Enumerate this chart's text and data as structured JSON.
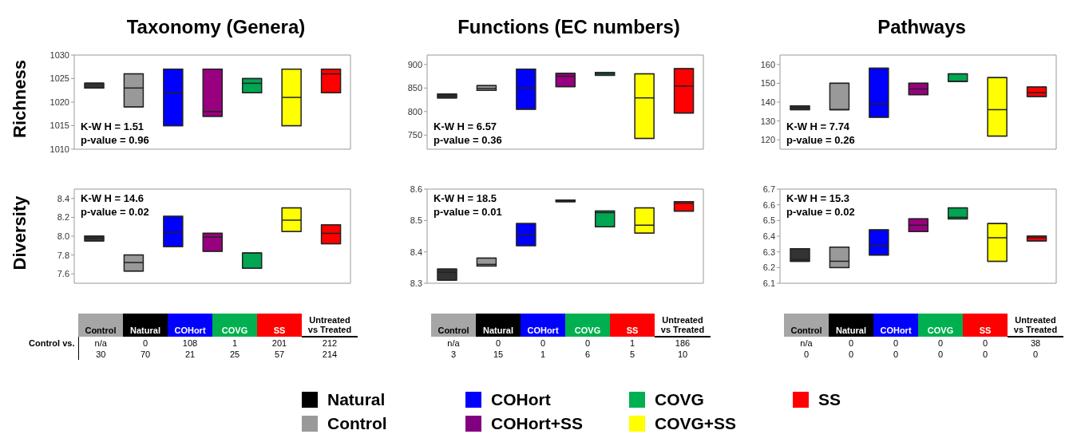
{
  "chart_data": [
    {
      "type": "box",
      "title": "Taxonomy (Genera)",
      "ylabel": "Richness",
      "categories": [
        null,
        null,
        null,
        null,
        null,
        null,
        null
      ],
      "colors": [
        "#333333",
        "#999999",
        "#0000ff",
        "#990080",
        "#00a651",
        "#ffff00",
        "#ff0000"
      ],
      "boxes": [
        {
          "low": 1023,
          "q1": 1023,
          "median": 1024,
          "q3": 1024,
          "high": 1024
        },
        {
          "low": 1019,
          "q1": 1019,
          "median": 1023,
          "q3": 1026,
          "high": 1026
        },
        {
          "low": 1015,
          "q1": 1015,
          "median": 1022,
          "q3": 1027,
          "high": 1027
        },
        {
          "low": 1017,
          "q1": 1017,
          "median": 1018,
          "q3": 1027,
          "high": 1027
        },
        {
          "low": 1022,
          "q1": 1022,
          "median": 1024,
          "q3": 1025,
          "high": 1025
        },
        {
          "low": 1015,
          "q1": 1015,
          "median": 1021,
          "q3": 1027,
          "high": 1027
        },
        {
          "low": 1022,
          "q1": 1022,
          "median": 1026,
          "q3": 1027,
          "high": 1027
        }
      ],
      "ylim": [
        1010,
        1030
      ],
      "yticks": [
        1010,
        1015,
        1020,
        1025,
        1030
      ],
      "annotations": [
        "K-W H = 1.51",
        "p-value = 0.96"
      ]
    },
    {
      "type": "box",
      "title": "Functions (EC numbers)",
      "categories": [
        null,
        null,
        null,
        null,
        null,
        null,
        null
      ],
      "colors": [
        "#333333",
        "#999999",
        "#0000ff",
        "#990080",
        "#00a651",
        "#ffff00",
        "#ff0000"
      ],
      "boxes": [
        {
          "low": 829,
          "q1": 829,
          "median": 833,
          "q3": 837,
          "high": 837
        },
        {
          "low": 845,
          "q1": 845,
          "median": 849,
          "q3": 855,
          "high": 855
        },
        {
          "low": 805,
          "q1": 805,
          "median": 850,
          "q3": 890,
          "high": 890
        },
        {
          "low": 853,
          "q1": 853,
          "median": 875,
          "q3": 881,
          "high": 881
        },
        {
          "low": 877,
          "q1": 877,
          "median": 880,
          "q3": 883,
          "high": 883
        },
        {
          "low": 743,
          "q1": 743,
          "median": 829,
          "q3": 880,
          "high": 880
        },
        {
          "low": 797,
          "q1": 797,
          "median": 854,
          "q3": 891,
          "high": 891
        }
      ],
      "ylim": [
        720,
        920
      ],
      "yticks": [
        750,
        800,
        850,
        900
      ],
      "annotations": [
        "K-W H = 6.57",
        "p-value = 0.36"
      ]
    },
    {
      "type": "box",
      "title": "Pathways",
      "categories": [
        null,
        null,
        null,
        null,
        null,
        null,
        null
      ],
      "colors": [
        "#333333",
        "#999999",
        "#0000ff",
        "#990080",
        "#00a651",
        "#ffff00",
        "#ff0000"
      ],
      "boxes": [
        {
          "low": 136,
          "q1": 136,
          "median": 137,
          "q3": 138,
          "high": 138
        },
        {
          "low": 136,
          "q1": 136,
          "median": 136,
          "q3": 150,
          "high": 150
        },
        {
          "low": 132,
          "q1": 132,
          "median": 139,
          "q3": 158,
          "high": 158
        },
        {
          "low": 144,
          "q1": 144,
          "median": 147,
          "q3": 150,
          "high": 150
        },
        {
          "low": 151,
          "q1": 151,
          "median": 151,
          "q3": 155,
          "high": 155
        },
        {
          "low": 122,
          "q1": 122,
          "median": 136,
          "q3": 153,
          "high": 153
        },
        {
          "low": 143,
          "q1": 143,
          "median": 145,
          "q3": 148,
          "high": 148
        }
      ],
      "ylim": [
        115,
        165
      ],
      "yticks": [
        120,
        130,
        140,
        150,
        160
      ],
      "annotations": [
        "K-W H = 7.74",
        "p-value = 0.26"
      ]
    },
    {
      "type": "box",
      "ylabel": "Diversity",
      "categories": [
        null,
        null,
        null,
        null,
        null,
        null,
        null
      ],
      "colors": [
        "#333333",
        "#999999",
        "#0000ff",
        "#990080",
        "#00a651",
        "#ffff00",
        "#ff0000"
      ],
      "boxes": [
        {
          "low": 7.95,
          "q1": 7.95,
          "median": 7.98,
          "q3": 8.0,
          "high": 8.0
        },
        {
          "low": 7.63,
          "q1": 7.63,
          "median": 7.72,
          "q3": 7.8,
          "high": 7.8
        },
        {
          "low": 7.89,
          "q1": 7.89,
          "median": 8.04,
          "q3": 8.21,
          "high": 8.21
        },
        {
          "low": 7.84,
          "q1": 7.84,
          "median": 7.99,
          "q3": 8.03,
          "high": 8.03
        },
        {
          "low": 7.66,
          "q1": 7.66,
          "median": 7.82,
          "q3": 7.82,
          "high": 7.82
        },
        {
          "low": 8.05,
          "q1": 8.05,
          "median": 8.17,
          "q3": 8.3,
          "high": 8.3
        },
        {
          "low": 7.92,
          "q1": 7.92,
          "median": 8.03,
          "q3": 8.12,
          "high": 8.12
        }
      ],
      "ylim": [
        7.5,
        8.5
      ],
      "yticks": [
        7.6,
        7.8,
        {
          "value": 8,
          "label": "8.0"
        },
        8.2,
        8.4
      ],
      "annotations": [
        "K-W H = 14.6",
        "p-value = 0.02"
      ]
    },
    {
      "type": "box",
      "categories": [
        null,
        null,
        null,
        null,
        null,
        null,
        null
      ],
      "colors": [
        "#333333",
        "#999999",
        "#0000ff",
        "#990080",
        "#00a651",
        "#ffff00",
        "#ff0000"
      ],
      "boxes": [
        {
          "low": 8.31,
          "q1": 8.31,
          "median": 8.335,
          "q3": 8.345,
          "high": 8.345
        },
        {
          "low": 8.355,
          "q1": 8.355,
          "median": 8.36,
          "q3": 8.38,
          "high": 8.38
        },
        {
          "low": 8.42,
          "q1": 8.42,
          "median": 8.455,
          "q3": 8.49,
          "high": 8.49
        },
        {
          "low": 8.56,
          "q1": 8.56,
          "median": 8.562,
          "q3": 8.565,
          "high": 8.565
        },
        {
          "low": 8.48,
          "q1": 8.48,
          "median": 8.525,
          "q3": 8.53,
          "high": 8.53
        },
        {
          "low": 8.46,
          "q1": 8.46,
          "median": 8.485,
          "q3": 8.54,
          "high": 8.54
        },
        {
          "low": 8.53,
          "q1": 8.53,
          "median": 8.555,
          "q3": 8.56,
          "high": 8.56
        }
      ],
      "ylim": [
        8.3,
        8.6
      ],
      "yticks": [
        8.3,
        8.4,
        8.5,
        8.6
      ],
      "annotations": [
        "K-W H = 18.5",
        "p-value = 0.01"
      ]
    },
    {
      "type": "box",
      "categories": [
        null,
        null,
        null,
        null,
        null,
        null,
        null
      ],
      "colors": [
        "#333333",
        "#999999",
        "#0000ff",
        "#990080",
        "#00a651",
        "#ffff00",
        "#ff0000"
      ],
      "boxes": [
        {
          "low": 6.24,
          "q1": 6.24,
          "median": 6.25,
          "q3": 6.32,
          "high": 6.32
        },
        {
          "low": 6.2,
          "q1": 6.2,
          "median": 6.24,
          "q3": 6.33,
          "high": 6.33
        },
        {
          "low": 6.28,
          "q1": 6.28,
          "median": 6.34,
          "q3": 6.44,
          "high": 6.44
        },
        {
          "low": 6.43,
          "q1": 6.43,
          "median": 6.47,
          "q3": 6.51,
          "high": 6.51
        },
        {
          "low": 6.51,
          "q1": 6.51,
          "median": 6.52,
          "q3": 6.58,
          "high": 6.58
        },
        {
          "low": 6.24,
          "q1": 6.24,
          "median": 6.39,
          "q3": 6.48,
          "high": 6.48
        },
        {
          "low": 6.37,
          "q1": 6.37,
          "median": 6.39,
          "q3": 6.4,
          "high": 6.4
        }
      ],
      "ylim": [
        6.1,
        6.7
      ],
      "yticks": [
        6.1,
        6.2,
        6.3,
        6.4,
        6.5,
        6.6,
        6.7
      ],
      "annotations": [
        "K-W H = 15.3",
        "p-value = 0.02"
      ]
    },
    {
      "type": "other",
      "categories": [
        "Control",
        "Natural",
        "COHort",
        "COVG",
        "SS",
        "Untreated vs Treated"
      ],
      "colors": [
        "#a6a6a6",
        "#000000",
        "#0000ff",
        "#00b050",
        "#ff0000",
        null
      ],
      "y_categories": [
        "Control vs.",
        null
      ],
      "cell_labels": [
        [
          "n/a",
          "0",
          "108",
          "1",
          "201",
          "212"
        ],
        [
          "30",
          "70",
          "21",
          "25",
          "57",
          "214"
        ]
      ]
    },
    {
      "type": "other",
      "categories": [
        "Control",
        "Natural",
        "COHort",
        "COVG",
        "SS",
        "Untreated vs Treated"
      ],
      "colors": [
        "#a6a6a6",
        "#000000",
        "#0000ff",
        "#00b050",
        "#ff0000",
        null
      ],
      "cell_labels": [
        [
          "n/a",
          "0",
          "0",
          "0",
          "1",
          "186"
        ],
        [
          "3",
          "15",
          "1",
          "6",
          "5",
          "10"
        ]
      ]
    },
    {
      "type": "other",
      "categories": [
        "Control",
        "Natural",
        "COHort",
        "COVG",
        "SS",
        "Untreated vs Treated"
      ],
      "colors": [
        "#a6a6a6",
        "#000000",
        "#0000ff",
        "#00b050",
        "#ff0000",
        null
      ],
      "cell_labels": [
        [
          "n/a",
          "0",
          "0",
          "0",
          "0",
          "38"
        ],
        [
          "0",
          "0",
          "0",
          "0",
          "0",
          "0"
        ]
      ]
    },
    {
      "type": "other",
      "categories": [
        "Natural",
        "Control",
        "COHort",
        "COHort+SS",
        "COVG",
        "COVG+SS",
        "SS"
      ],
      "colors": [
        "#000000",
        "#999999",
        "#0000ff",
        "#800080",
        "#00b050",
        "#ffff00",
        "#ff0000"
      ]
    }
  ]
}
